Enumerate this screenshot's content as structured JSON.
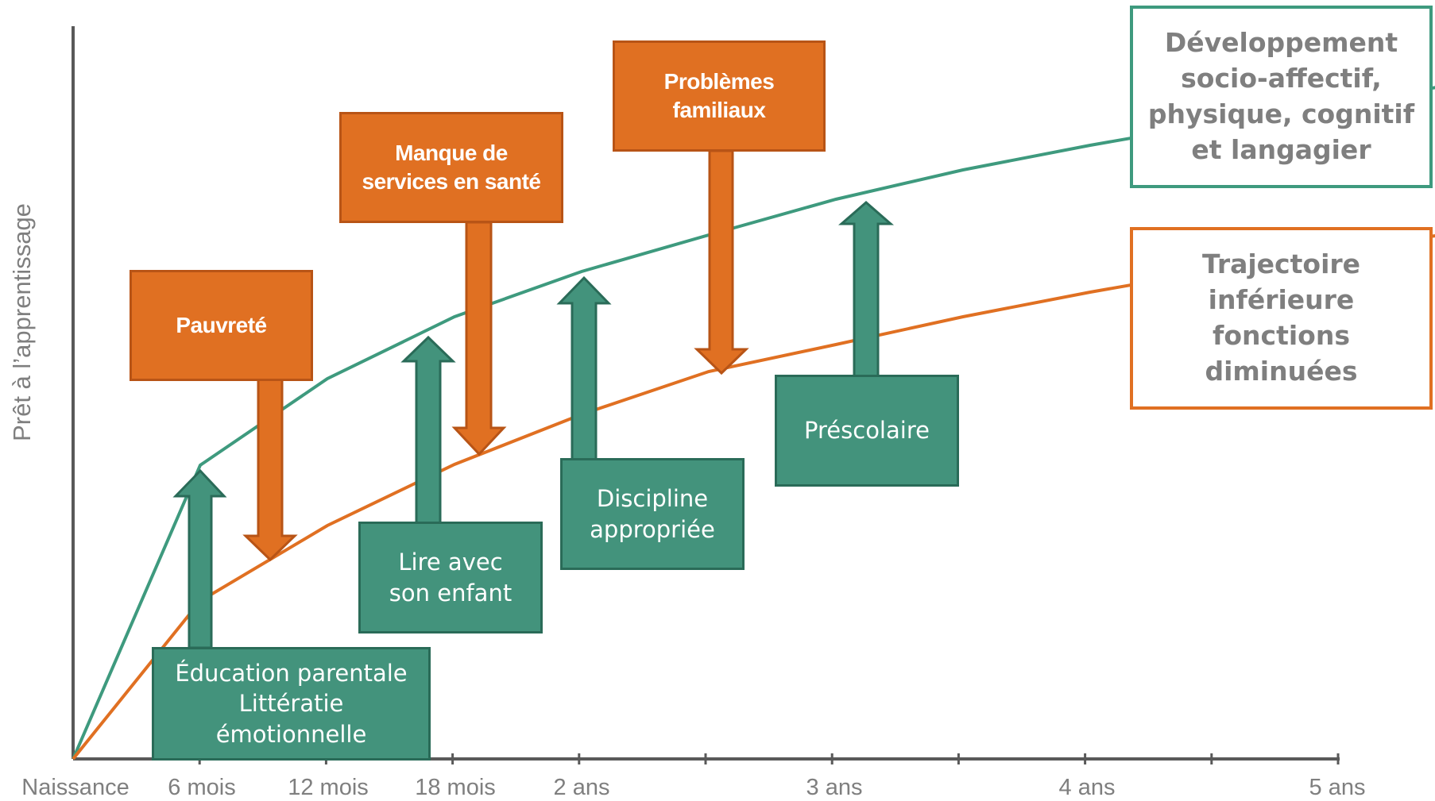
{
  "y_axis_label": "Prêt à l’apprentissage",
  "x_axis_ticks": [
    "Naissance",
    "6 mois",
    "12 mois",
    "18 mois",
    "2 ans",
    "3 ans",
    "4 ans",
    "5 ans"
  ],
  "curves": {
    "upper": {
      "color": "#3e9a7e"
    },
    "lower": {
      "color": "#e07022"
    }
  },
  "risk_factors": [
    {
      "lines": [
        "Pauvreté"
      ]
    },
    {
      "lines": [
        "Manque de",
        "services en santé"
      ]
    },
    {
      "lines": [
        "Problèmes",
        "familiaux"
      ]
    }
  ],
  "protective_factors": [
    {
      "lines": [
        "Éducation parentale",
        "Littératie",
        "émotionnelle"
      ]
    },
    {
      "lines": [
        "Lire avec",
        "son enfant"
      ]
    },
    {
      "lines": [
        "Discipline",
        "appropriée"
      ]
    },
    {
      "lines": [
        "Préscolaire"
      ]
    }
  ],
  "legend": {
    "upper": {
      "lines": [
        "Développement",
        "socio-affectif,",
        "physique, cognitif",
        "et langagier"
      ]
    },
    "lower": {
      "lines": [
        "Trajectoire",
        "inférieure",
        "fonctions",
        "diminuées"
      ]
    }
  },
  "colors": {
    "risk_fill": "#e07022",
    "protective_fill": "#43937c",
    "axis": "#595959",
    "label_gray": "#7f7f7f"
  }
}
